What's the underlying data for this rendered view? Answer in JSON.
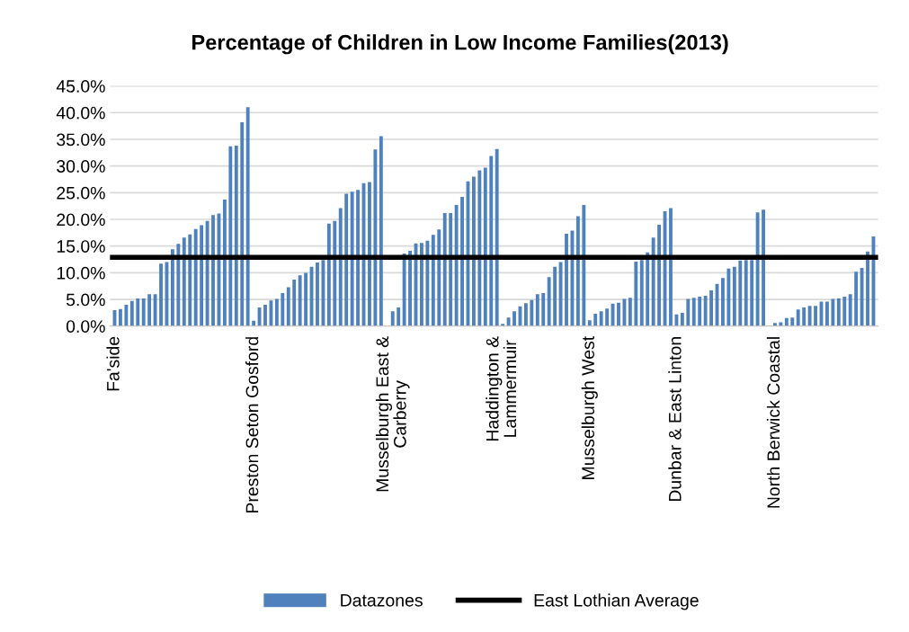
{
  "chart_data": {
    "type": "bar",
    "title": "Percentage of Children in Low Income Families(2013)",
    "categories": [
      "Fa'side",
      null,
      null,
      null,
      null,
      null,
      null,
      null,
      null,
      null,
      null,
      null,
      null,
      null,
      null,
      null,
      null,
      null,
      null,
      null,
      null,
      null,
      null,
      null,
      "Preston Seton Gosford",
      null,
      null,
      null,
      null,
      null,
      null,
      null,
      null,
      null,
      null,
      null,
      null,
      null,
      null,
      null,
      null,
      null,
      null,
      null,
      null,
      null,
      null,
      null,
      "Musselburgh East &\nCarberry",
      null,
      null,
      null,
      null,
      null,
      null,
      null,
      null,
      null,
      null,
      null,
      null,
      null,
      null,
      null,
      null,
      null,
      null,
      "Haddington &\nLammermuir",
      null,
      null,
      null,
      null,
      null,
      null,
      null,
      null,
      null,
      null,
      null,
      null,
      null,
      null,
      "Musselburgh West",
      null,
      null,
      null,
      null,
      null,
      null,
      null,
      null,
      null,
      null,
      null,
      null,
      null,
      null,
      "Dunbar & East Linton",
      null,
      null,
      null,
      null,
      null,
      null,
      null,
      null,
      null,
      null,
      null,
      null,
      null,
      null,
      null,
      null,
      "North Berwick Coastal",
      null,
      null,
      null,
      null,
      null,
      null,
      null,
      null,
      null,
      null,
      null,
      null,
      null,
      null,
      null,
      null,
      null
    ],
    "series": [
      {
        "name": "Datazones",
        "color": "#4f81bd",
        "values": [
          3.0,
          3.2,
          4.0,
          4.7,
          5.2,
          5.2,
          6.0,
          6.0,
          11.7,
          12.0,
          14.4,
          15.4,
          16.6,
          17.2,
          18.2,
          18.9,
          19.7,
          20.8,
          21.1,
          23.7,
          33.7,
          33.8,
          38.2,
          41.0,
          1.0,
          3.5,
          4.0,
          4.8,
          5.1,
          6.2,
          7.3,
          8.7,
          9.5,
          10.0,
          11.1,
          11.9,
          12.4,
          19.2,
          19.7,
          22.1,
          24.8,
          25.2,
          25.5,
          26.8,
          27.0,
          33.1,
          35.6,
          null,
          2.8,
          3.5,
          13.6,
          14.1,
          15.5,
          15.6,
          16.0,
          17.1,
          18.1,
          21.2,
          21.2,
          22.7,
          24.2,
          27.1,
          28.0,
          29.2,
          29.7,
          31.9,
          33.2,
          0.4,
          1.6,
          2.8,
          3.7,
          4.3,
          4.9,
          6.0,
          6.2,
          9.2,
          11.1,
          12.0,
          17.3,
          17.9,
          20.6,
          22.7,
          1.1,
          2.3,
          2.8,
          3.3,
          4.2,
          4.4,
          5.1,
          5.3,
          12.1,
          12.4,
          13.8,
          16.6,
          19.0,
          21.5,
          22.1,
          2.2,
          2.5,
          5.1,
          5.3,
          5.5,
          5.7,
          6.7,
          7.9,
          9.0,
          10.8,
          11.1,
          12.3,
          12.4,
          12.4,
          21.3,
          21.8,
          null,
          0.6,
          0.7,
          1.5,
          1.6,
          3.1,
          3.5,
          3.8,
          3.8,
          4.6,
          4.6,
          5.1,
          5.2,
          5.5,
          6.0,
          10.2,
          10.9,
          14.0,
          16.8
        ]
      }
    ],
    "ref_lines": [
      {
        "axis": "y",
        "value": 12.9,
        "label": "East Lothian Average",
        "color": "#000000",
        "line_style": "solid"
      }
    ],
    "ylim": [
      0,
      45
    ],
    "yticks": [
      {
        "value": 0,
        "label": "0.0%"
      },
      {
        "value": 5,
        "label": "5.0%"
      },
      {
        "value": 10,
        "label": "10.0%"
      },
      {
        "value": 15,
        "label": "15.0%"
      },
      {
        "value": 20,
        "label": "20.0%"
      },
      {
        "value": 25,
        "label": "25.0%"
      },
      {
        "value": 30,
        "label": "30.0%"
      },
      {
        "value": 35,
        "label": "35.0%"
      },
      {
        "value": 40,
        "label": "40.0%"
      },
      {
        "value": 45,
        "label": "45.0%"
      }
    ],
    "grid": "y",
    "legend": "bottom"
  }
}
